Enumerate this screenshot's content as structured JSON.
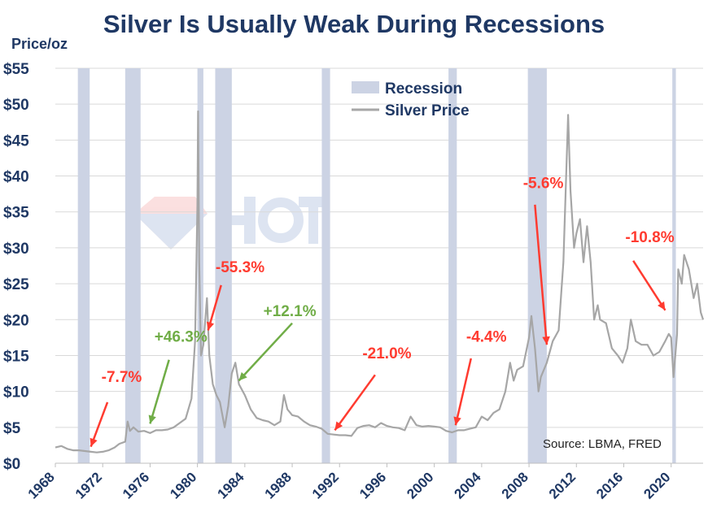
{
  "chart_data": {
    "type": "line",
    "title": "Silver Is Usually Weak During Recessions",
    "ylabel": "Price/oz",
    "source": "Source: LBMA, FRED",
    "xlim": [
      1968,
      2022.7
    ],
    "ylim": [
      0,
      55
    ],
    "y_ticks": [
      0,
      5,
      10,
      15,
      20,
      25,
      30,
      35,
      40,
      45,
      50,
      55
    ],
    "y_tick_labels": [
      "$0",
      "$5",
      "$10",
      "$15",
      "$20",
      "$25",
      "$30",
      "$35",
      "$40",
      "$45",
      "$50",
      "$55"
    ],
    "x_ticks": [
      1968,
      1972,
      1976,
      1980,
      1984,
      1988,
      1992,
      1996,
      2000,
      2004,
      2008,
      2012,
      2016,
      2020
    ],
    "x_tick_labels": [
      "1968",
      "1972",
      "1976",
      "1980",
      "1984",
      "1988",
      "1992",
      "1996",
      "2000",
      "2004",
      "2008",
      "2012",
      "2016",
      "2020"
    ],
    "grid": true,
    "legend_position": "top-center",
    "legend": [
      {
        "label": "Recession",
        "type": "band",
        "color": "#ccd3e4"
      },
      {
        "label": "Silver Price",
        "type": "line",
        "color": "#a6a6a6"
      }
    ],
    "recessions": [
      [
        1969.9,
        1970.9
      ],
      [
        1973.9,
        1975.2
      ],
      [
        1980.0,
        1980.5
      ],
      [
        1981.5,
        1982.9
      ],
      [
        1990.5,
        1991.2
      ],
      [
        2001.2,
        2001.9
      ],
      [
        2007.9,
        2009.5
      ],
      [
        2020.1,
        2020.4
      ]
    ],
    "series": [
      {
        "name": "Silver Price",
        "color": "#a6a6a6",
        "points": [
          [
            1968.0,
            2.2
          ],
          [
            1968.5,
            2.4
          ],
          [
            1969.0,
            2.0
          ],
          [
            1969.5,
            1.8
          ],
          [
            1970.0,
            1.8
          ],
          [
            1970.5,
            1.7
          ],
          [
            1971.0,
            1.6
          ],
          [
            1971.5,
            1.5
          ],
          [
            1972.0,
            1.6
          ],
          [
            1972.5,
            1.8
          ],
          [
            1973.0,
            2.2
          ],
          [
            1973.4,
            2.7
          ],
          [
            1973.9,
            3.0
          ],
          [
            1974.1,
            5.8
          ],
          [
            1974.3,
            4.5
          ],
          [
            1974.6,
            5.0
          ],
          [
            1975.0,
            4.4
          ],
          [
            1975.5,
            4.5
          ],
          [
            1976.0,
            4.2
          ],
          [
            1976.5,
            4.6
          ],
          [
            1977.0,
            4.6
          ],
          [
            1977.5,
            4.7
          ],
          [
            1978.0,
            5.0
          ],
          [
            1978.5,
            5.6
          ],
          [
            1979.0,
            6.2
          ],
          [
            1979.5,
            9.0
          ],
          [
            1979.8,
            17.0
          ],
          [
            1980.0,
            36.0
          ],
          [
            1980.05,
            49.0
          ],
          [
            1980.15,
            28.0
          ],
          [
            1980.3,
            15.0
          ],
          [
            1980.5,
            16.5
          ],
          [
            1980.8,
            23.0
          ],
          [
            1981.0,
            15.0
          ],
          [
            1981.3,
            11.0
          ],
          [
            1981.6,
            9.5
          ],
          [
            1981.9,
            8.5
          ],
          [
            1982.3,
            5.0
          ],
          [
            1982.6,
            8.0
          ],
          [
            1982.9,
            12.5
          ],
          [
            1983.2,
            14.0
          ],
          [
            1983.5,
            11.0
          ],
          [
            1984.0,
            9.5
          ],
          [
            1984.5,
            7.5
          ],
          [
            1985.0,
            6.3
          ],
          [
            1985.5,
            6.0
          ],
          [
            1986.0,
            5.8
          ],
          [
            1986.5,
            5.3
          ],
          [
            1987.0,
            5.8
          ],
          [
            1987.3,
            9.5
          ],
          [
            1987.6,
            7.5
          ],
          [
            1988.0,
            6.7
          ],
          [
            1988.5,
            6.5
          ],
          [
            1989.0,
            5.8
          ],
          [
            1989.5,
            5.3
          ],
          [
            1990.0,
            5.1
          ],
          [
            1990.5,
            4.8
          ],
          [
            1991.0,
            4.1
          ],
          [
            1991.5,
            4.0
          ],
          [
            1992.0,
            3.9
          ],
          [
            1992.5,
            3.9
          ],
          [
            1993.0,
            3.8
          ],
          [
            1993.5,
            4.9
          ],
          [
            1994.0,
            5.2
          ],
          [
            1994.5,
            5.3
          ],
          [
            1995.0,
            5.0
          ],
          [
            1995.5,
            5.6
          ],
          [
            1996.0,
            5.2
          ],
          [
            1996.5,
            5.0
          ],
          [
            1997.0,
            4.9
          ],
          [
            1997.5,
            4.6
          ],
          [
            1998.0,
            6.5
          ],
          [
            1998.5,
            5.3
          ],
          [
            1999.0,
            5.1
          ],
          [
            1999.5,
            5.2
          ],
          [
            2000.0,
            5.1
          ],
          [
            2000.5,
            5.0
          ],
          [
            2001.0,
            4.5
          ],
          [
            2001.5,
            4.3
          ],
          [
            2002.0,
            4.6
          ],
          [
            2002.5,
            4.6
          ],
          [
            2003.0,
            4.8
          ],
          [
            2003.5,
            5.0
          ],
          [
            2004.0,
            6.5
          ],
          [
            2004.5,
            6.0
          ],
          [
            2005.0,
            7.0
          ],
          [
            2005.5,
            7.5
          ],
          [
            2006.0,
            10.0
          ],
          [
            2006.4,
            14.0
          ],
          [
            2006.7,
            11.5
          ],
          [
            2007.0,
            13.0
          ],
          [
            2007.5,
            13.5
          ],
          [
            2008.0,
            17.5
          ],
          [
            2008.2,
            20.5
          ],
          [
            2008.5,
            16.0
          ],
          [
            2008.8,
            10.0
          ],
          [
            2009.0,
            12.0
          ],
          [
            2009.5,
            14.0
          ],
          [
            2010.0,
            17.0
          ],
          [
            2010.5,
            18.5
          ],
          [
            2010.9,
            28.0
          ],
          [
            2011.3,
            48.5
          ],
          [
            2011.5,
            38.0
          ],
          [
            2011.8,
            30.0
          ],
          [
            2012.0,
            32.0
          ],
          [
            2012.3,
            34.0
          ],
          [
            2012.6,
            28.0
          ],
          [
            2012.9,
            33.0
          ],
          [
            2013.2,
            28.0
          ],
          [
            2013.5,
            20.0
          ],
          [
            2013.8,
            22.0
          ],
          [
            2014.0,
            20.0
          ],
          [
            2014.5,
            19.5
          ],
          [
            2015.0,
            16.0
          ],
          [
            2015.5,
            15.0
          ],
          [
            2015.9,
            14.0
          ],
          [
            2016.3,
            16.0
          ],
          [
            2016.6,
            20.0
          ],
          [
            2017.0,
            17.0
          ],
          [
            2017.5,
            16.5
          ],
          [
            2018.0,
            16.5
          ],
          [
            2018.5,
            15.0
          ],
          [
            2019.0,
            15.5
          ],
          [
            2019.5,
            17.0
          ],
          [
            2019.8,
            18.0
          ],
          [
            2020.0,
            17.5
          ],
          [
            2020.2,
            12.0
          ],
          [
            2020.5,
            18.0
          ],
          [
            2020.6,
            27.0
          ],
          [
            2020.9,
            25.0
          ],
          [
            2021.1,
            29.0
          ],
          [
            2021.5,
            27.0
          ],
          [
            2021.9,
            23.0
          ],
          [
            2022.2,
            25.0
          ],
          [
            2022.5,
            21.0
          ],
          [
            2022.7,
            20.0
          ]
        ]
      }
    ],
    "annotations": [
      {
        "text": "-7.7%",
        "color": "#ff3b30",
        "tx": 1973.6,
        "ty": 11.3,
        "ax": 1972.4,
        "ay": 8.5,
        "hx": 1971.0,
        "hy": 2.3
      },
      {
        "text": "+46.3%",
        "color": "#70ad47",
        "tx": 1978.6,
        "ty": 16.9,
        "ax": 1977.6,
        "ay": 14.4,
        "hx": 1976.0,
        "hy": 5.5
      },
      {
        "text": "-55.3%",
        "color": "#ff3b30",
        "tx": 1983.6,
        "ty": 26.6,
        "ax": 1982.0,
        "ay": 24.8,
        "hx": 1980.9,
        "hy": 18.5
      },
      {
        "text": "+12.1%",
        "color": "#70ad47",
        "tx": 1987.8,
        "ty": 20.5,
        "ax": 1988.0,
        "ay": 19.5,
        "hx": 1983.5,
        "hy": 11.5
      },
      {
        "text": "-21.0%",
        "color": "#ff3b30",
        "tx": 1996.0,
        "ty": 14.6,
        "ax": 1995.0,
        "ay": 12.3,
        "hx": 1991.6,
        "hy": 4.6
      },
      {
        "text": "-4.4%",
        "color": "#ff3b30",
        "tx": 2004.4,
        "ty": 16.9,
        "ax": 2003.1,
        "ay": 14.6,
        "hx": 2001.8,
        "hy": 5.3
      },
      {
        "text": "-5.6%",
        "color": "#ff3b30",
        "tx": 2009.2,
        "ty": 38.3,
        "ax": 2008.5,
        "ay": 36.0,
        "hx": 2009.5,
        "hy": 16.5
      },
      {
        "text": "-10.8%",
        "color": "#ff3b30",
        "tx": 2018.2,
        "ty": 30.8,
        "ax": 2016.8,
        "ay": 28.2,
        "hx": 2019.5,
        "hy": 21.3
      }
    ]
  }
}
